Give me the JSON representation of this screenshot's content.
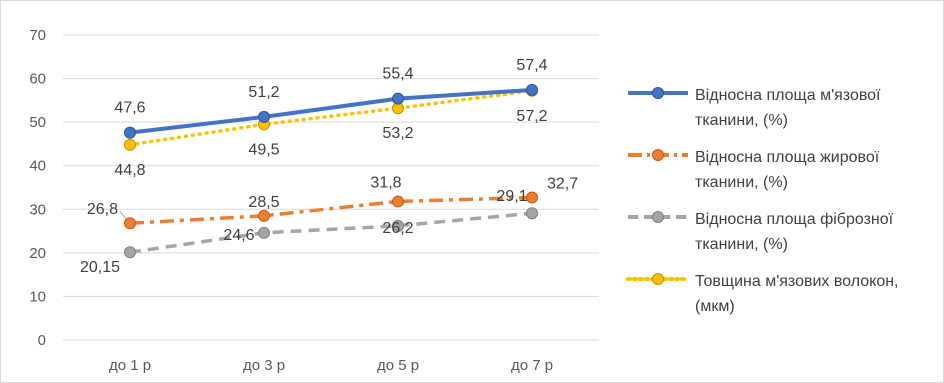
{
  "chart_data": {
    "type": "line",
    "categories": [
      "до 1 р",
      "до 3 р",
      "до 5 р",
      "до 7 р"
    ],
    "ylim": [
      0,
      70
    ],
    "yticks": [
      0,
      10,
      20,
      30,
      40,
      50,
      60,
      70
    ],
    "ytick_labels": [
      "0",
      "10",
      "20",
      "30",
      "40",
      "50",
      "60",
      "70"
    ],
    "grid": true,
    "legend_position": "right",
    "series": [
      {
        "name": "Відносна площа м'язової тканини, (%)",
        "values": [
          47.6,
          51.2,
          55.4,
          57.4
        ],
        "labels": [
          "47,6",
          "51,2",
          "55,4",
          "57,4"
        ],
        "color": "#4472c4",
        "style": "solid"
      },
      {
        "name": "Відносна площа жирової тканини, (%)",
        "values": [
          26.8,
          28.5,
          31.8,
          32.7
        ],
        "labels": [
          "26,8",
          "28,5",
          "31,8",
          "32,7"
        ],
        "color": "#ed7d31",
        "style": "dashdot"
      },
      {
        "name": "Відносна площа фіброзної тканини, (%)",
        "values": [
          20.15,
          24.6,
          26.2,
          29.1
        ],
        "labels": [
          "20,15",
          "24,6",
          "26,2",
          "29,1"
        ],
        "color": "#a5a5a5",
        "style": "dash"
      },
      {
        "name": "Товщина м'язових волокон, (мкм)",
        "values": [
          44.8,
          49.5,
          53.2,
          57.2
        ],
        "labels": [
          "44,8",
          "49,5",
          "53,2",
          "57,2"
        ],
        "color": "#ffc000",
        "style": "dot"
      }
    ]
  }
}
